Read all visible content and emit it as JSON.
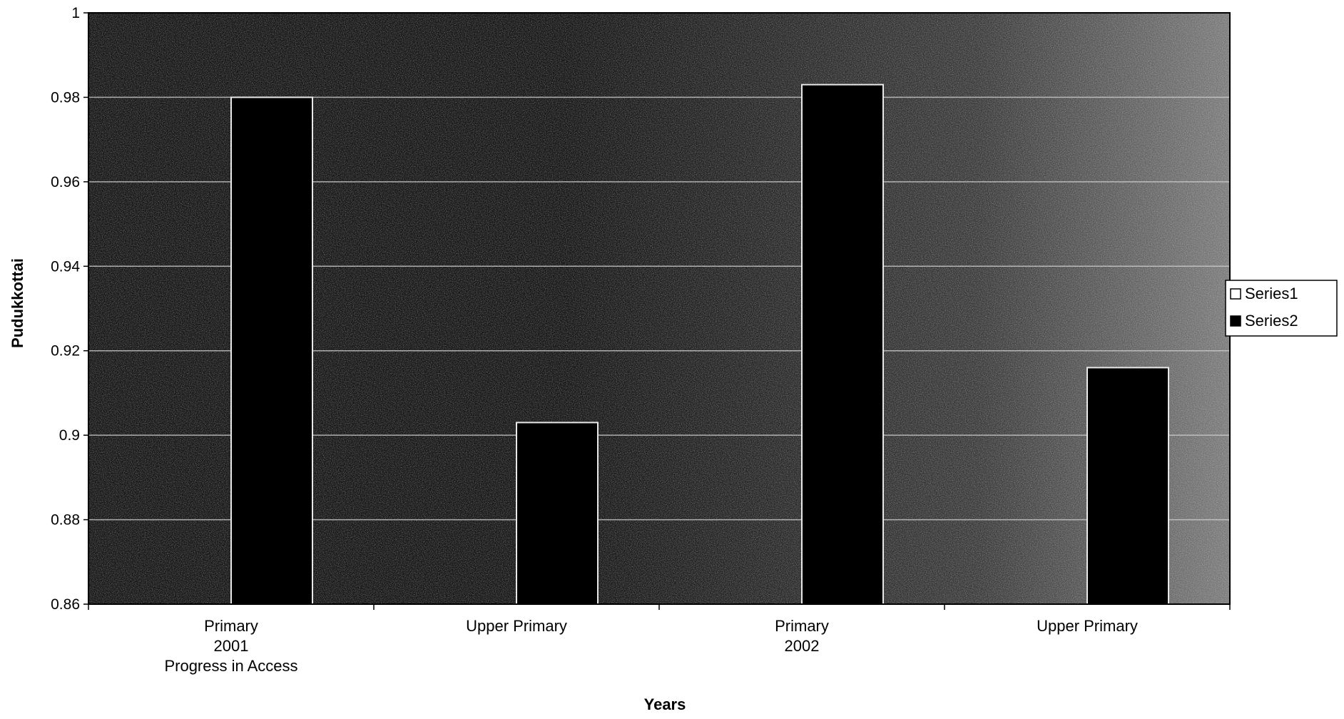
{
  "chart_data": {
    "type": "bar",
    "xlabel": "Years",
    "ylabel": "Pudukkottai",
    "ylim": [
      0.86,
      1
    ],
    "yticks": [
      "0.86",
      "0.88",
      "0.9",
      "0.92",
      "0.94",
      "0.96",
      "0.98",
      "1"
    ],
    "categories": [
      [
        "Primary",
        "2001",
        "Progress in Access"
      ],
      [
        "Upper Primary"
      ],
      [
        "Primary",
        "2002"
      ],
      [
        "Upper Primary"
      ]
    ],
    "series": [
      {
        "name": "Series1",
        "values": [
          null,
          null,
          null,
          null
        ]
      },
      {
        "name": "Series2",
        "values": [
          0.98,
          0.903,
          0.983,
          0.916
        ]
      }
    ],
    "grid": true,
    "legend": "right",
    "colors": {
      "series1": "#ffffff",
      "series2": "#000000",
      "plot_dark": "#151515",
      "plot_mid": "#3a3a3a",
      "plot_light": "#7a7a7a",
      "gridline": "#cfcfcf"
    }
  }
}
